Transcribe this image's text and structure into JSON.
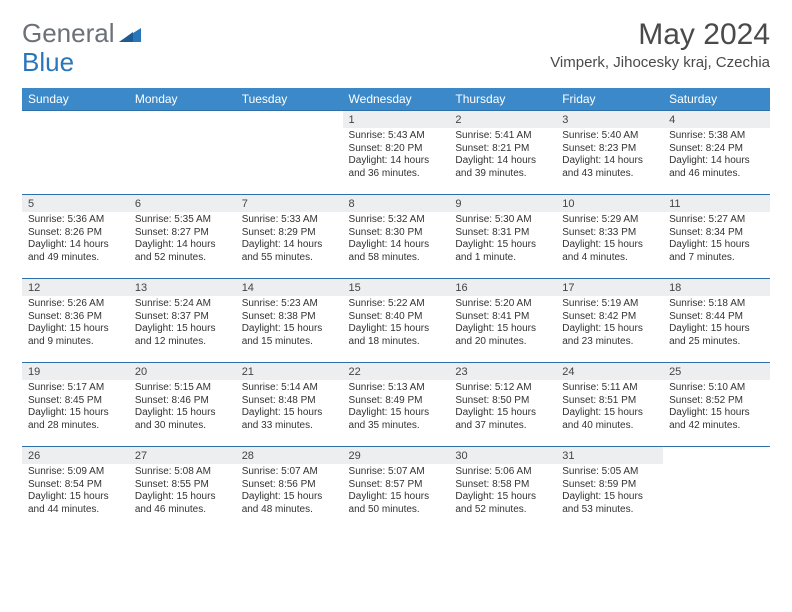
{
  "brand": {
    "part1": "General",
    "part2": "Blue"
  },
  "title": "May 2024",
  "location": "Vimperk, Jihocesky kraj, Czechia",
  "day_headers": [
    "Sunday",
    "Monday",
    "Tuesday",
    "Wednesday",
    "Thursday",
    "Friday",
    "Saturday"
  ],
  "colors": {
    "header_bg": "#3b89c9",
    "header_text": "#ffffff",
    "daynum_bg": "#eceeef",
    "rule": "#2f6fa8",
    "logo_gray": "#6b7177",
    "logo_blue": "#2a76bb"
  },
  "weeks": [
    [
      null,
      null,
      null,
      {
        "n": "1",
        "sr": "5:43 AM",
        "ss": "8:20 PM",
        "dl": "14 hours and 36 minutes."
      },
      {
        "n": "2",
        "sr": "5:41 AM",
        "ss": "8:21 PM",
        "dl": "14 hours and 39 minutes."
      },
      {
        "n": "3",
        "sr": "5:40 AM",
        "ss": "8:23 PM",
        "dl": "14 hours and 43 minutes."
      },
      {
        "n": "4",
        "sr": "5:38 AM",
        "ss": "8:24 PM",
        "dl": "14 hours and 46 minutes."
      }
    ],
    [
      {
        "n": "5",
        "sr": "5:36 AM",
        "ss": "8:26 PM",
        "dl": "14 hours and 49 minutes."
      },
      {
        "n": "6",
        "sr": "5:35 AM",
        "ss": "8:27 PM",
        "dl": "14 hours and 52 minutes."
      },
      {
        "n": "7",
        "sr": "5:33 AM",
        "ss": "8:29 PM",
        "dl": "14 hours and 55 minutes."
      },
      {
        "n": "8",
        "sr": "5:32 AM",
        "ss": "8:30 PM",
        "dl": "14 hours and 58 minutes."
      },
      {
        "n": "9",
        "sr": "5:30 AM",
        "ss": "8:31 PM",
        "dl": "15 hours and 1 minute."
      },
      {
        "n": "10",
        "sr": "5:29 AM",
        "ss": "8:33 PM",
        "dl": "15 hours and 4 minutes."
      },
      {
        "n": "11",
        "sr": "5:27 AM",
        "ss": "8:34 PM",
        "dl": "15 hours and 7 minutes."
      }
    ],
    [
      {
        "n": "12",
        "sr": "5:26 AM",
        "ss": "8:36 PM",
        "dl": "15 hours and 9 minutes."
      },
      {
        "n": "13",
        "sr": "5:24 AM",
        "ss": "8:37 PM",
        "dl": "15 hours and 12 minutes."
      },
      {
        "n": "14",
        "sr": "5:23 AM",
        "ss": "8:38 PM",
        "dl": "15 hours and 15 minutes."
      },
      {
        "n": "15",
        "sr": "5:22 AM",
        "ss": "8:40 PM",
        "dl": "15 hours and 18 minutes."
      },
      {
        "n": "16",
        "sr": "5:20 AM",
        "ss": "8:41 PM",
        "dl": "15 hours and 20 minutes."
      },
      {
        "n": "17",
        "sr": "5:19 AM",
        "ss": "8:42 PM",
        "dl": "15 hours and 23 minutes."
      },
      {
        "n": "18",
        "sr": "5:18 AM",
        "ss": "8:44 PM",
        "dl": "15 hours and 25 minutes."
      }
    ],
    [
      {
        "n": "19",
        "sr": "5:17 AM",
        "ss": "8:45 PM",
        "dl": "15 hours and 28 minutes."
      },
      {
        "n": "20",
        "sr": "5:15 AM",
        "ss": "8:46 PM",
        "dl": "15 hours and 30 minutes."
      },
      {
        "n": "21",
        "sr": "5:14 AM",
        "ss": "8:48 PM",
        "dl": "15 hours and 33 minutes."
      },
      {
        "n": "22",
        "sr": "5:13 AM",
        "ss": "8:49 PM",
        "dl": "15 hours and 35 minutes."
      },
      {
        "n": "23",
        "sr": "5:12 AM",
        "ss": "8:50 PM",
        "dl": "15 hours and 37 minutes."
      },
      {
        "n": "24",
        "sr": "5:11 AM",
        "ss": "8:51 PM",
        "dl": "15 hours and 40 minutes."
      },
      {
        "n": "25",
        "sr": "5:10 AM",
        "ss": "8:52 PM",
        "dl": "15 hours and 42 minutes."
      }
    ],
    [
      {
        "n": "26",
        "sr": "5:09 AM",
        "ss": "8:54 PM",
        "dl": "15 hours and 44 minutes."
      },
      {
        "n": "27",
        "sr": "5:08 AM",
        "ss": "8:55 PM",
        "dl": "15 hours and 46 minutes."
      },
      {
        "n": "28",
        "sr": "5:07 AM",
        "ss": "8:56 PM",
        "dl": "15 hours and 48 minutes."
      },
      {
        "n": "29",
        "sr": "5:07 AM",
        "ss": "8:57 PM",
        "dl": "15 hours and 50 minutes."
      },
      {
        "n": "30",
        "sr": "5:06 AM",
        "ss": "8:58 PM",
        "dl": "15 hours and 52 minutes."
      },
      {
        "n": "31",
        "sr": "5:05 AM",
        "ss": "8:59 PM",
        "dl": "15 hours and 53 minutes."
      },
      null
    ]
  ],
  "labels": {
    "sunrise": "Sunrise:",
    "sunset": "Sunset:",
    "daylight": "Daylight:"
  }
}
